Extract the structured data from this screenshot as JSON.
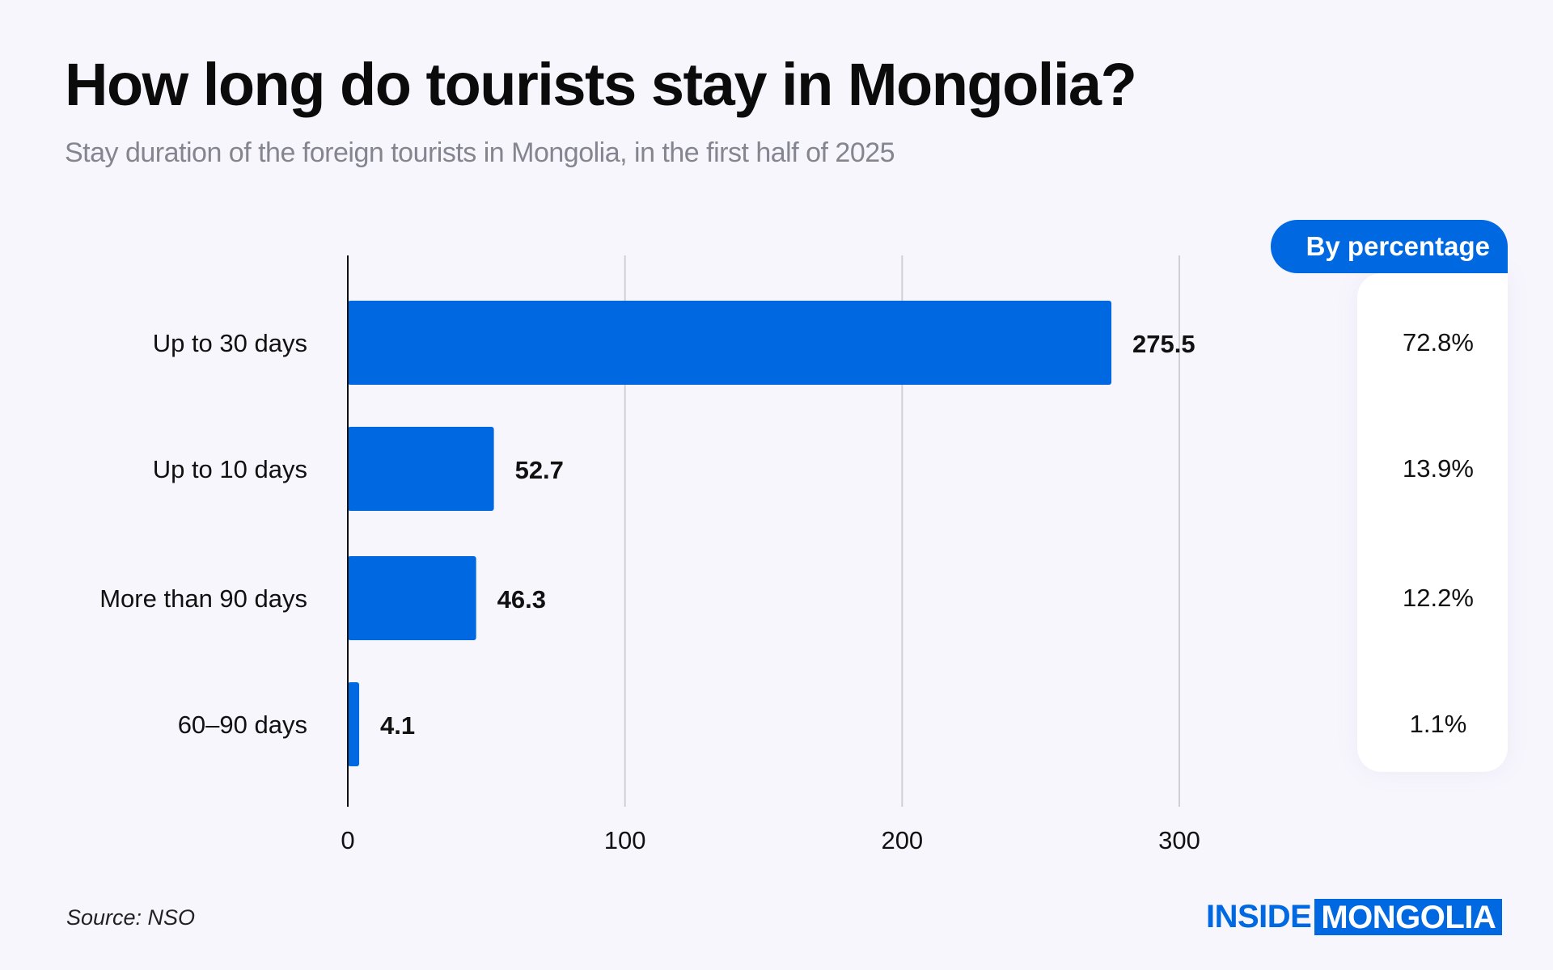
{
  "chart_data": {
    "type": "bar",
    "orientation": "horizontal",
    "title": "How long do tourists stay in Mongolia?",
    "subtitle": "Stay duration of the foreign tourists in Mongolia, in the first half of 2025",
    "categories": [
      "Up to 30 days",
      "Up to 10 days",
      "More than 90 days",
      "60–90 days"
    ],
    "values": [
      275.5,
      52.7,
      46.3,
      4.1
    ],
    "value_labels": [
      "275.5",
      "52.7",
      "46.3",
      "4.1"
    ],
    "xlim": [
      0,
      300
    ],
    "xticks": [
      "0",
      "100",
      "200",
      "300"
    ],
    "grid": "vertical",
    "bar_color": "#0068e0",
    "percentage_header": "By percentage",
    "percentages": [
      "72.8%",
      "13.9%",
      "12.2%",
      "1.1%"
    ]
  },
  "source": "Source: NSO",
  "logo": {
    "part1": "INSIDE",
    "part2": "MONGOLIA"
  },
  "colors": {
    "background": "#f7f6fd",
    "accent": "#0068e0"
  }
}
